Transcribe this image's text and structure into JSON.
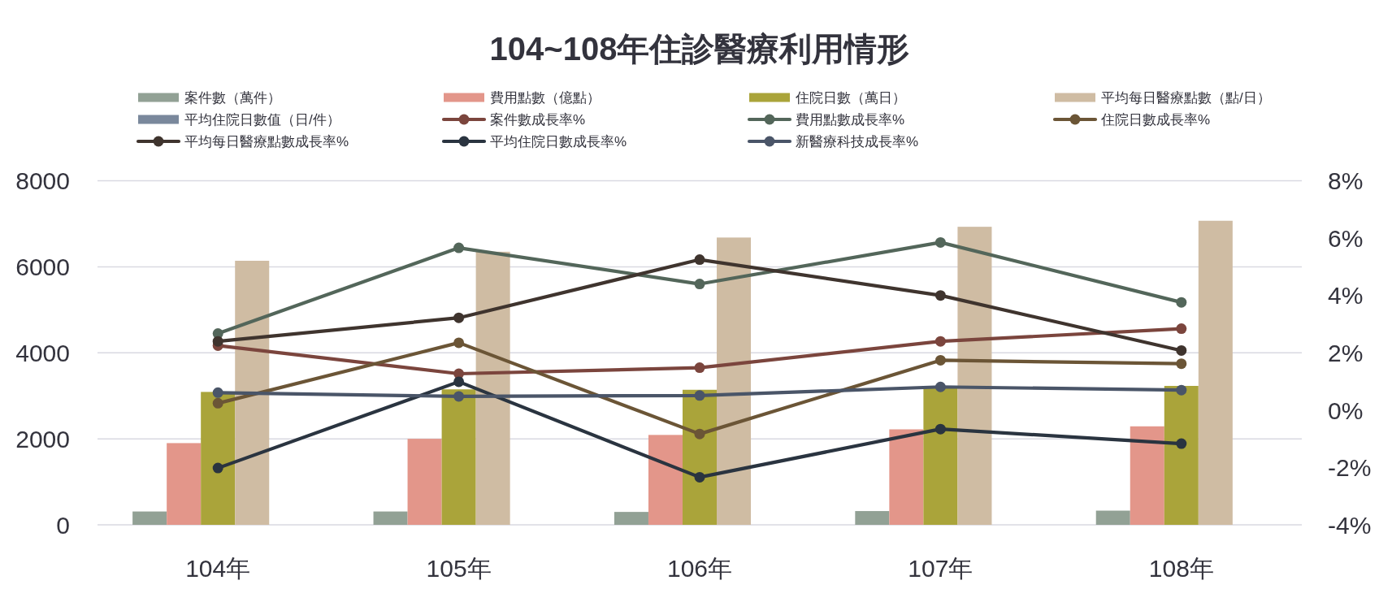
{
  "chart_data": {
    "type": "bar",
    "title": "104~108年住診醫療利用情形",
    "categories": [
      "104年",
      "105年",
      "106年",
      "107年",
      "108年"
    ],
    "series": [
      {
        "name": "案件數（萬件）",
        "color": "#92a195",
        "values": [
          310,
          310,
          300,
          320,
          330
        ]
      },
      {
        "name": "費用點數（億點）",
        "color": "#e3968a",
        "values": [
          1900,
          2000,
          2090,
          2220,
          2290
        ]
      },
      {
        "name": "住院日數（萬日）",
        "color": "#aaa43a",
        "values": [
          3090,
          3150,
          3140,
          3200,
          3230
        ]
      },
      {
        "name": "平均每日醫療點數（點/日）",
        "color": "#cfbca3",
        "values": [
          6140,
          6350,
          6680,
          6930,
          7070
        ]
      },
      {
        "name": "平均住院日數值（日/件）",
        "color": "#7a889c",
        "values": [
          null,
          null,
          null,
          null,
          null
        ]
      },
      {
        "name": "案件數成長率%",
        "type": "line",
        "axis": "y2",
        "color": "#7b453d",
        "values": [
          2.25,
          1.27,
          1.48,
          2.4,
          2.84
        ]
      },
      {
        "name": "費用點數成長率%",
        "type": "line",
        "axis": "y2",
        "color": "#53665a",
        "values": [
          2.67,
          5.66,
          4.4,
          5.85,
          3.76
        ]
      },
      {
        "name": "住院日數成長率%",
        "type": "line",
        "axis": "y2",
        "color": "#6b5536",
        "values": [
          0.24,
          2.35,
          -0.83,
          1.74,
          1.62
        ]
      },
      {
        "name": "平均每日醫療點數成長率%",
        "type": "line",
        "axis": "y2",
        "color": "#3f342e",
        "values": [
          2.4,
          3.22,
          5.25,
          4.0,
          2.08
        ]
      },
      {
        "name": "平均住院日數成長率%",
        "type": "line",
        "axis": "y2",
        "color": "#2a3440",
        "values": [
          -2.02,
          0.99,
          -2.34,
          -0.66,
          -1.17
        ]
      },
      {
        "name": "新醫療科技成長率%",
        "type": "line",
        "axis": "y2",
        "color": "#4a5568",
        "values": [
          0.61,
          0.48,
          0.51,
          0.81,
          0.7
        ]
      }
    ],
    "ylim": [
      0,
      8000
    ],
    "yticks": [
      0,
      2000,
      4000,
      6000,
      8000
    ],
    "y2lim": [
      -4,
      8
    ],
    "y2ticks": [
      {
        "value": -4,
        "label": "-4%"
      },
      {
        "value": -2,
        "label": "-2%"
      },
      {
        "value": 0,
        "label": "0%"
      },
      {
        "value": 2,
        "label": "2%"
      },
      {
        "value": 4,
        "label": "4%"
      },
      {
        "value": 6,
        "label": "6%"
      },
      {
        "value": 8,
        "label": "8%"
      }
    ],
    "grid": "y",
    "legend": "top",
    "marker": "circle"
  }
}
